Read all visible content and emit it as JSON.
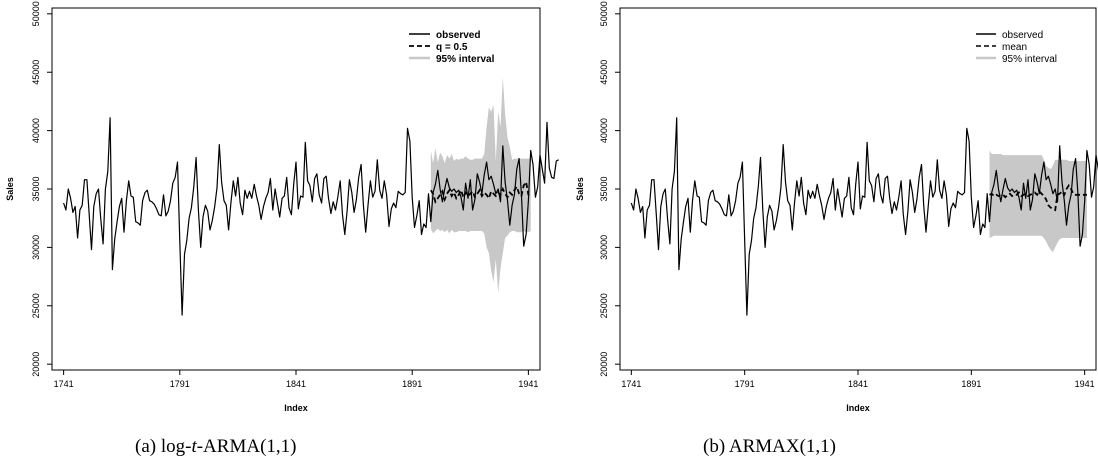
{
  "captions": {
    "a": {
      "label": "(a)",
      "pre": "log-",
      "italic": "t",
      "post": "-ARMA(1,1)"
    },
    "b": {
      "label": "(b)",
      "text": "ARMAX(1,1)"
    }
  },
  "colors": {
    "observed": "#000000",
    "forecast": "#000000",
    "interval": "#c8c8c8",
    "frame": "#000000"
  },
  "chart_data": [
    {
      "type": "line",
      "panel": "a",
      "xlabel": "Index",
      "ylabel": "Sales",
      "xlim": [
        1736,
        1946
      ],
      "ylim": [
        19500,
        50500
      ],
      "xticks": [
        1741,
        1791,
        1841,
        1891,
        1941
      ],
      "yticks": [
        20000,
        25000,
        30000,
        35000,
        40000,
        45000,
        50000
      ],
      "legend": {
        "position": "top-right",
        "entries": [
          "observed",
          "q = 0.5",
          "95% interval"
        ],
        "bold": true
      },
      "observed": {
        "start": 1741,
        "values": [
          33800,
          33200,
          35000,
          34200,
          33000,
          33500,
          30800,
          33200,
          33600,
          35800,
          35800,
          32800,
          29800,
          33500,
          34600,
          35000,
          32400,
          30300,
          35000,
          36500,
          41100,
          28100,
          30700,
          32200,
          33500,
          34200,
          31300,
          34000,
          35700,
          34400,
          34300,
          32200,
          32100,
          31900,
          34000,
          34700,
          34900,
          34000,
          33900,
          33700,
          33300,
          32800,
          32700,
          34500,
          32700,
          33100,
          34000,
          35500,
          36000,
          37300,
          30500,
          24200,
          29400,
          30600,
          32500,
          33400,
          35200,
          37700,
          33200,
          30000,
          32600,
          33600,
          33100,
          31500,
          32300,
          33500,
          35100,
          38800,
          35600,
          34000,
          33600,
          31500,
          33800,
          35700,
          34400,
          36000,
          33800,
          32800,
          34900,
          34200,
          34800,
          34200,
          35400,
          34400,
          33600,
          32400,
          33500,
          34200,
          34700,
          35900,
          33200,
          35000,
          33800,
          32600,
          34200,
          34400,
          36000,
          33400,
          32800,
          35400,
          37300,
          33300,
          34400,
          34300,
          39000,
          35700,
          35300,
          33900,
          35900,
          36300,
          34500,
          33800,
          35900,
          36100,
          34200,
          32900,
          33900,
          33200,
          34300,
          35700,
          32800,
          31100,
          33100,
          35800,
          34700,
          33000,
          34100,
          36000,
          37100,
          33600,
          31300,
          33600,
          35700,
          34300,
          34800,
          37500,
          34900,
          34200,
          35700,
          34500,
          31800,
          33300,
          33800,
          33400,
          34800,
          34600,
          34500,
          34700,
          40200,
          39100,
          34300,
          31700,
          32700,
          34000,
          31100,
          32000,
          31700,
          34600,
          32200,
          34700,
          35400,
          36600,
          35000,
          33900,
          35000,
          35900,
          35100,
          34800,
          35000,
          34700,
          34900,
          34300,
          33200,
          35500,
          34200,
          35800,
          33200,
          34100,
          36300,
          35600,
          34600,
          36200,
          37300,
          35800,
          36100,
          35400,
          34600,
          35000,
          33900,
          38700,
          35600,
          34000,
          31900,
          33600,
          34500,
          36700,
          37600,
          34600,
          30100,
          31100,
          34000,
          38300,
          37100,
          34300,
          35200,
          37900,
          36700,
          35500,
          40700,
          36800,
          36000,
          35900,
          37400,
          37500
        ]
      },
      "forecast": {
        "start": 1899,
        "values": [
          34900,
          34600,
          33900,
          34200,
          34500,
          34800,
          34100,
          34600,
          34900,
          34400,
          34700,
          34200,
          34500,
          34900,
          34300,
          34700,
          34400,
          34600,
          34800,
          34300,
          34600,
          34900,
          34400,
          34700,
          34500,
          34200,
          34800,
          34600,
          34400,
          34700,
          34500,
          35000,
          34600,
          34300,
          34700,
          34500,
          34900,
          35200,
          34600,
          34400,
          35300,
          35600,
          34500,
          34400
        ]
      },
      "interval": {
        "start": 1899,
        "upper": [
          38300,
          37200,
          38500,
          37300,
          38100,
          37800,
          37200,
          37900,
          37600,
          38000,
          37400,
          37600,
          37500,
          37600,
          37600,
          37800,
          37600,
          37500,
          37500,
          37600,
          37600,
          37600,
          37600,
          38000,
          40300,
          42000,
          41600,
          42200,
          37400,
          41600,
          40300,
          44600,
          41400,
          39400,
          38600,
          37500,
          37600,
          37600,
          37600,
          37600,
          37600,
          37600,
          37600,
          37600
        ],
        "lower": [
          31600,
          31200,
          31400,
          31600,
          31400,
          31500,
          31300,
          31500,
          31200,
          31500,
          31300,
          31300,
          31400,
          31400,
          31400,
          31400,
          31300,
          31400,
          31400,
          31400,
          31400,
          31400,
          31400,
          31200,
          30000,
          29500,
          28000,
          27000,
          29000,
          26100,
          28200,
          29500,
          30800,
          31000,
          31300,
          31400,
          31400,
          31300,
          31300,
          31300,
          31400,
          31300,
          31300,
          31400
        ]
      }
    },
    {
      "type": "line",
      "panel": "b",
      "xlabel": "Index",
      "ylabel": "Sales",
      "xlim": [
        1736,
        1946
      ],
      "ylim": [
        19500,
        50500
      ],
      "xticks": [
        1741,
        1791,
        1841,
        1891,
        1941
      ],
      "yticks": [
        20000,
        25000,
        30000,
        35000,
        40000,
        45000,
        50000
      ],
      "legend": {
        "position": "top-right",
        "entries": [
          "observed",
          "mean",
          "95% interval"
        ],
        "bold": false
      },
      "observed": {
        "start": 1741,
        "values": [
          33800,
          33200,
          35000,
          34200,
          33000,
          33500,
          30800,
          33200,
          33600,
          35800,
          35800,
          32800,
          29800,
          33500,
          34600,
          35000,
          32400,
          30300,
          35000,
          36500,
          41100,
          28100,
          30700,
          32200,
          33500,
          34200,
          31300,
          34000,
          35700,
          34400,
          34300,
          32200,
          32100,
          31900,
          34000,
          34700,
          34900,
          34000,
          33900,
          33700,
          33300,
          32800,
          32700,
          34500,
          32700,
          33100,
          34000,
          35500,
          36000,
          37300,
          30500,
          24200,
          29400,
          30600,
          32500,
          33400,
          35200,
          37700,
          33200,
          30000,
          32600,
          33600,
          33100,
          31500,
          32300,
          33500,
          35100,
          38800,
          35600,
          34000,
          33600,
          31500,
          33800,
          35700,
          34400,
          36000,
          33800,
          32800,
          34900,
          34200,
          34800,
          34200,
          35400,
          34400,
          33600,
          32400,
          33500,
          34200,
          34700,
          35900,
          33200,
          35000,
          33800,
          32600,
          34200,
          34400,
          36000,
          33400,
          32800,
          35400,
          37300,
          33300,
          34400,
          34300,
          39000,
          35700,
          35300,
          33900,
          35900,
          36300,
          34500,
          33800,
          35900,
          36100,
          34200,
          32900,
          33900,
          33200,
          34300,
          35700,
          32800,
          31100,
          33100,
          35800,
          34700,
          33000,
          34100,
          36000,
          37100,
          33600,
          31300,
          33600,
          35700,
          34300,
          34800,
          37500,
          34900,
          34200,
          35700,
          34500,
          31800,
          33300,
          33800,
          33400,
          34800,
          34600,
          34500,
          34700,
          40200,
          39100,
          34300,
          31700,
          32700,
          34000,
          31100,
          32000,
          31700,
          34600,
          32200,
          34700,
          35400,
          36600,
          35000,
          33900,
          35000,
          35900,
          35100,
          34800,
          35000,
          34700,
          34900,
          34300,
          33200,
          35500,
          34200,
          35800,
          33200,
          34100,
          36300,
          35600,
          34600,
          36200,
          37300,
          35800,
          36100,
          35400,
          34600,
          35000,
          33900,
          38700,
          35600,
          34000,
          31900,
          33600,
          34500,
          36700,
          37600,
          34600,
          30100,
          31100,
          34000,
          38300,
          37100,
          34300,
          35200,
          37900,
          36700,
          35500,
          40700,
          36800,
          36000,
          35900,
          37400,
          37500
        ]
      },
      "forecast": {
        "start": 1899,
        "values": [
          34500,
          34600,
          34400,
          34500,
          34400,
          34500,
          34500,
          34300,
          34500,
          34600,
          34400,
          34500,
          34500,
          34700,
          34400,
          34500,
          34600,
          34400,
          34500,
          34600,
          34700,
          34500,
          34800,
          34600,
          34400,
          34100,
          33600,
          33400,
          33300,
          33200,
          34500,
          34600,
          34800,
          34500,
          35000,
          35300,
          35000,
          34600,
          34500,
          34500,
          34500,
          34500,
          34500,
          34500
        ]
      },
      "interval": {
        "start": 1899,
        "upper": [
          38300,
          38000,
          38000,
          38000,
          38000,
          38000,
          37900,
          37900,
          37900,
          37900,
          37900,
          37900,
          37900,
          37900,
          37900,
          37900,
          37900,
          37900,
          37900,
          37900,
          37900,
          37900,
          37900,
          37900,
          37500,
          37000,
          36800,
          36700,
          37000,
          37500,
          37500,
          37400,
          37500,
          37500,
          37500,
          37400,
          37400,
          37400,
          37400,
          37400,
          37400,
          37400,
          37400,
          37400
        ],
        "lower": [
          30800,
          30900,
          31000,
          31000,
          31000,
          31000,
          31000,
          31000,
          31000,
          31000,
          31000,
          31000,
          31000,
          31000,
          31000,
          31000,
          31000,
          31000,
          31000,
          31000,
          31000,
          31000,
          31000,
          31000,
          30800,
          30500,
          30100,
          29800,
          29600,
          30000,
          30400,
          30700,
          30800,
          30800,
          30800,
          30800,
          30800,
          30800,
          30800,
          30800,
          30800,
          30800,
          30800,
          30800
        ]
      }
    }
  ]
}
